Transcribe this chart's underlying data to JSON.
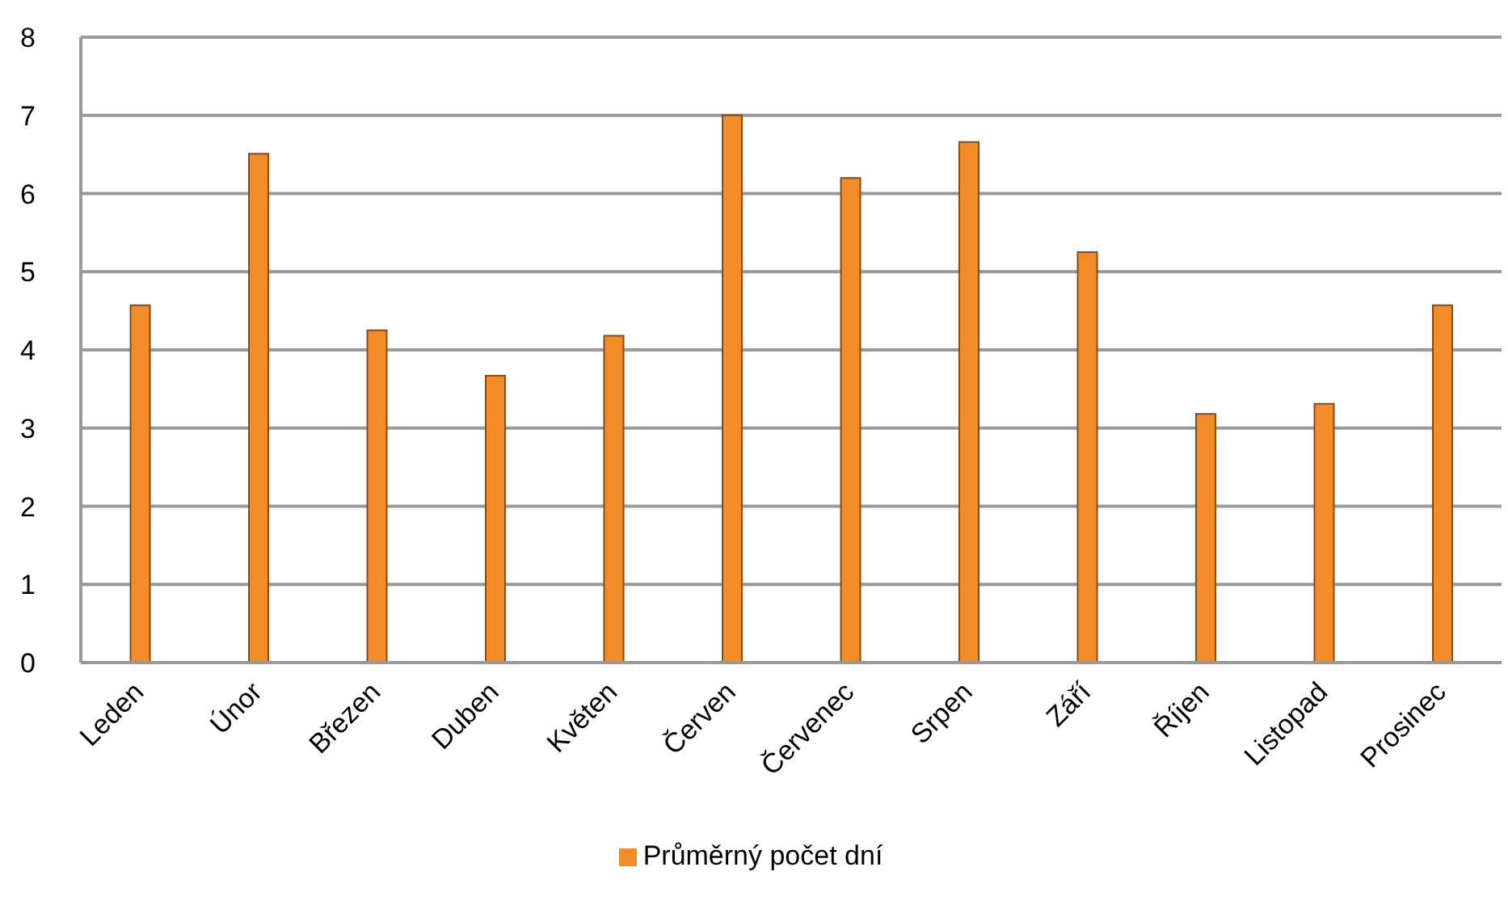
{
  "chart_data": {
    "type": "bar",
    "categories": [
      "Leden",
      "Únor",
      "Březen",
      "Duben",
      "Květen",
      "Červen",
      "Červenec",
      "Srpen",
      "Září",
      "Říjen",
      "Listopad",
      "Prosinec"
    ],
    "series": [
      {
        "name": "Průměrný počet dní",
        "color": "#f28c28",
        "values": [
          4.57,
          6.51,
          4.25,
          3.67,
          4.18,
          7.0,
          6.2,
          6.66,
          5.25,
          3.18,
          3.31,
          4.57
        ]
      }
    ],
    "ylim": [
      0,
      8
    ],
    "yticks": [
      0,
      1,
      2,
      3,
      4,
      5,
      6,
      7,
      8
    ],
    "grid": "y",
    "legend": "bottom"
  }
}
